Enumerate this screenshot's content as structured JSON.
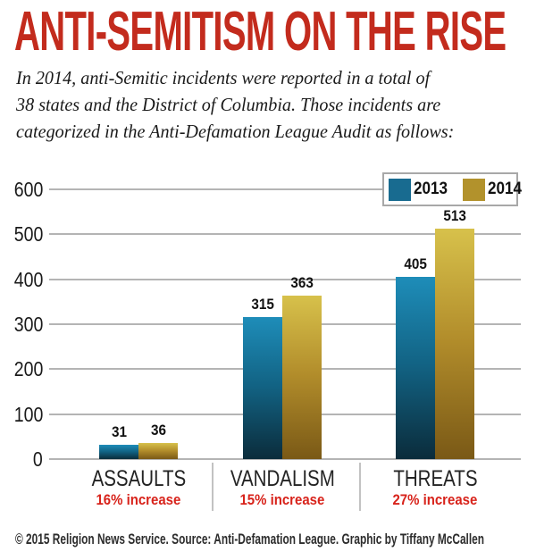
{
  "header": {
    "title": "ANTI-SEMITISM ON THE RISE",
    "subtitle_lines": [
      "In 2014, anti-Semitic incidents were reported in a total of",
      "38 states and the District of Columbia. Those incidents are",
      "categorized in the Anti-Defamation League Audit as follows:"
    ]
  },
  "colors": {
    "title_red": "#c32b1d",
    "increase_red": "#d8231b",
    "teal_2013": "#186b90",
    "gold_2014": "#b2922c",
    "teal_gradient_top": "#1e8db9",
    "teal_gradient_bottom": "#0b2c3b",
    "gold_gradient_top": "#d7c14b",
    "gold_gradient_bottom": "#7a5916",
    "gridline": "#b4b4b4"
  },
  "chart_data": {
    "type": "bar",
    "categories": [
      "ASSAULTS",
      "VANDALISM",
      "THREATS"
    ],
    "category_sublabels": [
      "16% increase",
      "15% increase",
      "27% increase"
    ],
    "series": [
      {
        "name": "2013",
        "values": [
          31,
          315,
          405
        ],
        "color": "#186b90"
      },
      {
        "name": "2014",
        "values": [
          36,
          363,
          513
        ],
        "color": "#b2922c"
      }
    ],
    "ylim": [
      0,
      600
    ],
    "yticks": [
      0,
      100,
      200,
      300,
      400,
      500,
      600
    ],
    "grid": true,
    "value_labels": true,
    "legend_position": "top-right",
    "xlabel": "",
    "ylabel": ""
  },
  "footer": {
    "credit": "© 2015 Religion News Service. Source: Anti-Defamation League. Graphic by Tiffany McCallen"
  }
}
